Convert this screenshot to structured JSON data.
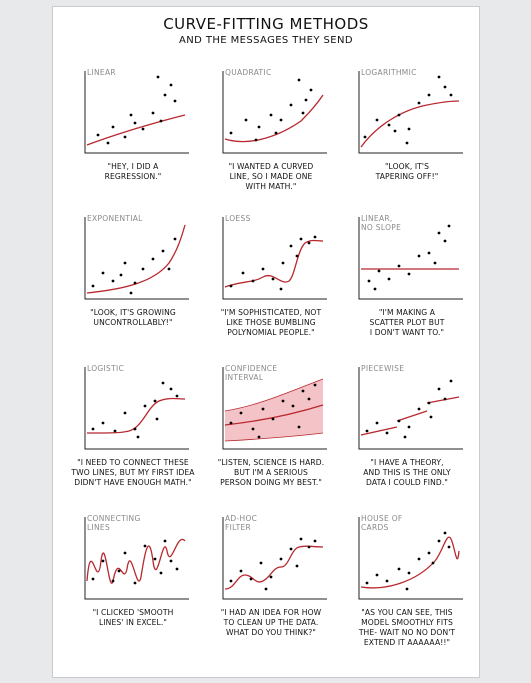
{
  "title": "CURVE-FITTING METHODS",
  "subtitle": "AND THE MESSAGES THEY SEND",
  "panels": [
    {
      "label": "LINEAR",
      "caption": "\"HEY, I DID A\nREGRESSION.\""
    },
    {
      "label": "QUADRATIC",
      "caption": "\"I WANTED A CURVED\nLINE, SO I MADE ONE\nWITH MATH.\""
    },
    {
      "label": "LOGARITHMIC",
      "caption": "\"LOOK, IT'S\nTAPERING OFF!\""
    },
    {
      "label": "EXPONENTIAL",
      "caption": "\"LOOK, IT'S GROWING\nUNCONTROLLABLY!\""
    },
    {
      "label": "LOESS",
      "caption": "\"I'M SOPHISTICATED, NOT\nLIKE THOSE BUMBLING\nPOLYNOMIAL PEOPLE.\""
    },
    {
      "label": "LINEAR,\nNO SLOPE",
      "caption": "\"I'M MAKING A\nSCATTER PLOT BUT\nI DON'T WANT TO.\""
    },
    {
      "label": "LOGISTIC",
      "caption": "\"I NEED TO CONNECT THESE\nTWO LINES, BUT MY FIRST IDEA\nDIDN'T HAVE ENOUGH MATH.\""
    },
    {
      "label": "CONFIDENCE\nINTERVAL",
      "caption": "\"LISTEN, SCIENCE IS HARD.\nBUT I'M A SERIOUS\nPERSON DOING MY BEST.\""
    },
    {
      "label": "PIECEWISE",
      "caption": "\"I HAVE A THEORY,\nAND THIS IS THE ONLY\nDATA I COULD FIND.\""
    },
    {
      "label": "CONNECTING\nLINES",
      "caption": "\"I CLICKED 'SMOOTH\nLINES' IN EXCEL.\""
    },
    {
      "label": "AD-HOC\nFILTER",
      "caption": "\"I HAD AN IDEA FOR HOW\nTO CLEAN UP THE DATA.\nWHAT DO YOU THINK?\""
    },
    {
      "label": "HOUSE OF\nCARDS",
      "caption": "\"AS YOU CAN SEE, THIS\nMODEL SMOOTHLY FITS\nTHE- WAIT NO NO DON'T\nEXTEND IT AAAAAA!!\""
    }
  ],
  "colors": {
    "curve": "#b8282e",
    "band": "#f4c3c8",
    "dots": "#000000",
    "axis": "#222222"
  }
}
